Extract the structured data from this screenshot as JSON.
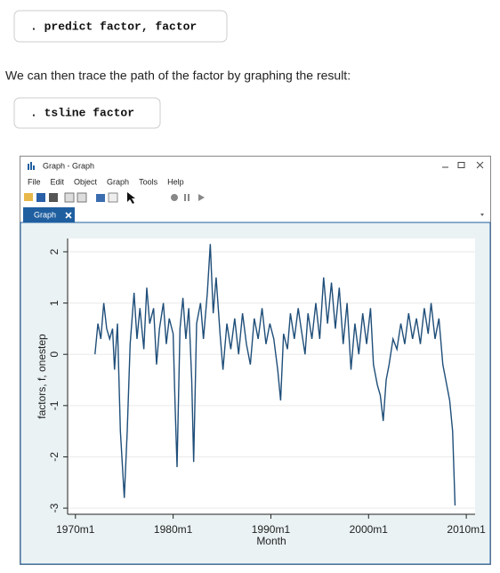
{
  "code_blocks": [
    ". predict factor, factor",
    ". tsline factor"
  ],
  "paragraph": "We can then trace the path of the factor by graphing the result:",
  "window": {
    "title": "Graph - Graph",
    "menu": [
      "File",
      "Edit",
      "Object",
      "Graph",
      "Tools",
      "Help"
    ],
    "tab": "Graph"
  },
  "chart_data": {
    "type": "line",
    "x_label": "Month",
    "y_label": "factors, f, onestep",
    "xlim": [
      1969.2,
      2010.9
    ],
    "ylim": [
      -3.12,
      2.26
    ],
    "xticks": [
      {
        "value": 1970,
        "label": "1970m1"
      },
      {
        "value": 1980,
        "label": "1980m1"
      },
      {
        "value": 1990,
        "label": "1990m1"
      },
      {
        "value": 2000,
        "label": "2000m1"
      },
      {
        "value": 2010,
        "label": "2010m1"
      }
    ],
    "yticks": [
      -3,
      -2,
      -1,
      0,
      1,
      2
    ],
    "grid": true,
    "color": "#1f4e79",
    "x": [
      1972.0,
      1972.3,
      1972.6,
      1972.9,
      1973.2,
      1973.5,
      1973.8,
      1974.0,
      1974.3,
      1974.6,
      1975.0,
      1975.3,
      1975.6,
      1976.0,
      1976.3,
      1976.6,
      1977.0,
      1977.3,
      1977.6,
      1978.0,
      1978.3,
      1978.6,
      1979.0,
      1979.3,
      1979.6,
      1980.0,
      1980.2,
      1980.4,
      1980.7,
      1981.0,
      1981.3,
      1981.6,
      1981.9,
      1982.1,
      1982.4,
      1982.8,
      1983.1,
      1983.5,
      1983.8,
      1984.1,
      1984.4,
      1984.8,
      1985.1,
      1985.5,
      1985.9,
      1986.3,
      1986.7,
      1987.1,
      1987.5,
      1987.9,
      1988.3,
      1988.7,
      1989.1,
      1989.5,
      1989.9,
      1990.3,
      1990.7,
      1991.0,
      1991.3,
      1991.7,
      1992.0,
      1992.4,
      1992.8,
      1993.1,
      1993.5,
      1993.8,
      1994.2,
      1994.6,
      1995.0,
      1995.4,
      1995.8,
      1996.2,
      1996.6,
      1997.0,
      1997.4,
      1997.8,
      1998.2,
      1998.6,
      1999.0,
      1999.4,
      1999.8,
      2000.2,
      2000.5,
      2000.9,
      2001.2,
      2001.5,
      2001.8,
      2002.1,
      2002.5,
      2002.9,
      2003.3,
      2003.7,
      2004.1,
      2004.5,
      2004.9,
      2005.3,
      2005.7,
      2006.1,
      2006.4,
      2006.8,
      2007.2,
      2007.6,
      2008.0,
      2008.3,
      2008.6,
      2008.85
    ],
    "values": [
      0.0,
      0.6,
      0.3,
      1.0,
      0.5,
      0.3,
      0.5,
      -0.3,
      0.6,
      -1.5,
      -2.8,
      -1.5,
      0.2,
      1.2,
      0.3,
      0.9,
      0.1,
      1.3,
      0.6,
      0.9,
      -0.2,
      0.5,
      1.0,
      0.2,
      0.7,
      0.4,
      -1.0,
      -2.2,
      0.5,
      1.1,
      0.3,
      0.9,
      -0.5,
      -2.1,
      0.6,
      1.0,
      0.3,
      1.2,
      2.15,
      0.8,
      1.5,
      0.4,
      -0.3,
      0.6,
      0.1,
      0.7,
      0.0,
      0.8,
      0.2,
      -0.2,
      0.7,
      0.3,
      0.9,
      0.2,
      0.6,
      0.3,
      -0.3,
      -0.9,
      0.4,
      0.1,
      0.8,
      0.3,
      0.9,
      0.5,
      0.0,
      0.8,
      0.3,
      1.0,
      0.3,
      1.5,
      0.6,
      1.4,
      0.5,
      1.3,
      0.2,
      1.0,
      -0.3,
      0.6,
      0.0,
      0.8,
      0.2,
      0.9,
      -0.2,
      -0.6,
      -0.8,
      -1.3,
      -0.5,
      -0.2,
      0.3,
      0.1,
      0.6,
      0.2,
      0.8,
      0.3,
      0.7,
      0.2,
      0.9,
      0.4,
      1.0,
      0.3,
      0.7,
      -0.2,
      -0.6,
      -0.9,
      -1.5,
      -2.95
    ]
  }
}
